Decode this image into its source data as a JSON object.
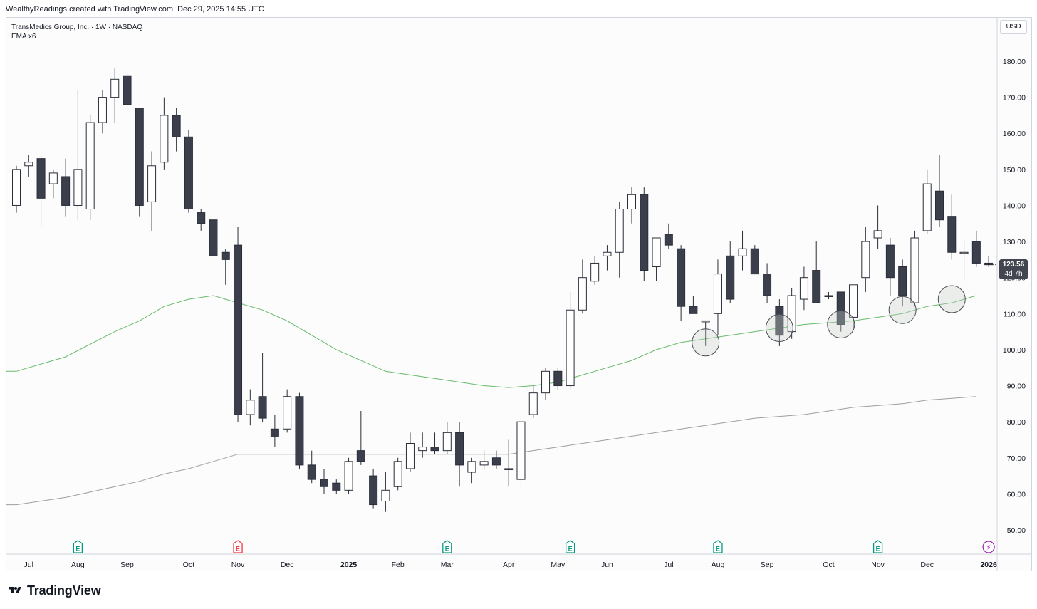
{
  "header": {
    "credit": "WealthyReadings created with TradingView.com, Dec 29, 2025 14:55 UTC"
  },
  "legend": {
    "symbol_line": "TransMedics Group, Inc. · 1W · NASDAQ",
    "indicator_line": "EMA x6"
  },
  "currency_button": "USD",
  "last_price": {
    "value": "123.56",
    "countdown": "4d 7h"
  },
  "brand": {
    "name": "TradingView"
  },
  "colors": {
    "up_body": "#ffffff",
    "down_body": "#3b3f4c",
    "candle_outline": "#2a2e39",
    "ema_green": "#66bb6a",
    "ema_gray": "#9e9e9e",
    "earnings_green": "#089981",
    "earnings_red": "#f23645",
    "dividend_purple": "#9c27b0",
    "grid": "#eeeeee"
  },
  "chart_data": {
    "type": "candlestick",
    "ylim": [
      44,
      190
    ],
    "y_ticks": [
      "180.00",
      "170.00",
      "160.00",
      "150.00",
      "140.00",
      "130.00",
      "120.00",
      "110.00",
      "100.00",
      "90.00",
      "80.00",
      "70.00",
      "60.00",
      "50.00"
    ],
    "y_tick_values": [
      180,
      170,
      160,
      150,
      140,
      130,
      120,
      110,
      100,
      90,
      80,
      70,
      60,
      50
    ],
    "x_month_labels": [
      "Jul",
      "Aug",
      "Sep",
      "Oct",
      "Nov",
      "Dec",
      "2025",
      "Feb",
      "Mar",
      "Apr",
      "May",
      "Jun",
      "Jul",
      "Aug",
      "Sep",
      "Oct",
      "Nov",
      "Dec",
      "2026"
    ],
    "x_month_index": [
      1,
      5,
      9,
      14,
      18,
      22,
      27,
      31,
      35,
      40,
      44,
      48,
      53,
      57,
      61,
      66,
      70,
      74,
      79
    ],
    "candles": [
      {
        "o": 140,
        "h": 151,
        "l": 138,
        "c": 150
      },
      {
        "o": 151,
        "h": 154,
        "l": 148,
        "c": 152
      },
      {
        "o": 153,
        "h": 154,
        "l": 134,
        "c": 142
      },
      {
        "o": 146,
        "h": 150,
        "l": 142,
        "c": 149
      },
      {
        "o": 148,
        "h": 153,
        "l": 137,
        "c": 140
      },
      {
        "o": 140,
        "h": 172,
        "l": 136,
        "c": 150
      },
      {
        "o": 139,
        "h": 165,
        "l": 136,
        "c": 163
      },
      {
        "o": 163,
        "h": 172,
        "l": 160,
        "c": 170
      },
      {
        "o": 170,
        "h": 178,
        "l": 163,
        "c": 175
      },
      {
        "o": 176,
        "h": 177,
        "l": 166,
        "c": 168
      },
      {
        "o": 167,
        "h": 167,
        "l": 137,
        "c": 140
      },
      {
        "o": 141,
        "h": 155,
        "l": 133,
        "c": 151
      },
      {
        "o": 152,
        "h": 170,
        "l": 150,
        "c": 165
      },
      {
        "o": 165,
        "h": 167,
        "l": 155,
        "c": 159
      },
      {
        "o": 159,
        "h": 161,
        "l": 138,
        "c": 139
      },
      {
        "o": 138,
        "h": 139,
        "l": 133,
        "c": 135
      },
      {
        "o": 136,
        "h": 136,
        "l": 126,
        "c": 126
      },
      {
        "o": 127,
        "h": 128,
        "l": 118,
        "c": 125
      },
      {
        "o": 129,
        "h": 134,
        "l": 80,
        "c": 82
      },
      {
        "o": 82,
        "h": 89,
        "l": 79,
        "c": 86
      },
      {
        "o": 87,
        "h": 99,
        "l": 80,
        "c": 81
      },
      {
        "o": 78,
        "h": 82,
        "l": 73,
        "c": 76
      },
      {
        "o": 78,
        "h": 89,
        "l": 77,
        "c": 87
      },
      {
        "o": 87,
        "h": 88,
        "l": 67,
        "c": 68
      },
      {
        "o": 68,
        "h": 72,
        "l": 63,
        "c": 64
      },
      {
        "o": 64,
        "h": 67,
        "l": 60,
        "c": 62
      },
      {
        "o": 63,
        "h": 64,
        "l": 60,
        "c": 61
      },
      {
        "o": 61,
        "h": 70,
        "l": 60,
        "c": 69
      },
      {
        "o": 72,
        "h": 83,
        "l": 68,
        "c": 69
      },
      {
        "o": 65,
        "h": 67,
        "l": 56,
        "c": 57
      },
      {
        "o": 58,
        "h": 66,
        "l": 55,
        "c": 61
      },
      {
        "o": 62,
        "h": 70,
        "l": 61,
        "c": 69
      },
      {
        "o": 67,
        "h": 77,
        "l": 66,
        "c": 74
      },
      {
        "o": 72,
        "h": 77,
        "l": 70,
        "c": 73
      },
      {
        "o": 73,
        "h": 77,
        "l": 71,
        "c": 72
      },
      {
        "o": 72,
        "h": 80,
        "l": 71,
        "c": 77
      },
      {
        "o": 77,
        "h": 80,
        "l": 62,
        "c": 68
      },
      {
        "o": 66,
        "h": 70,
        "l": 63,
        "c": 69
      },
      {
        "o": 68,
        "h": 72,
        "l": 67,
        "c": 69
      },
      {
        "o": 70,
        "h": 72,
        "l": 67,
        "c": 68
      },
      {
        "o": 67,
        "h": 75,
        "l": 62,
        "c": 67
      },
      {
        "o": 64,
        "h": 82,
        "l": 62,
        "c": 80
      },
      {
        "o": 82,
        "h": 90,
        "l": 81,
        "c": 88
      },
      {
        "o": 88,
        "h": 95,
        "l": 86,
        "c": 94
      },
      {
        "o": 94,
        "h": 95,
        "l": 89,
        "c": 90
      },
      {
        "o": 90,
        "h": 116,
        "l": 89,
        "c": 111
      },
      {
        "o": 111,
        "h": 125,
        "l": 110,
        "c": 120
      },
      {
        "o": 119,
        "h": 126,
        "l": 118,
        "c": 124
      },
      {
        "o": 126,
        "h": 129,
        "l": 122,
        "c": 127
      },
      {
        "o": 127,
        "h": 141,
        "l": 120,
        "c": 139
      },
      {
        "o": 139,
        "h": 145,
        "l": 135,
        "c": 143
      },
      {
        "o": 143,
        "h": 145,
        "l": 119,
        "c": 122
      },
      {
        "o": 123,
        "h": 131,
        "l": 119,
        "c": 131
      },
      {
        "o": 132,
        "h": 135,
        "l": 128,
        "c": 129
      },
      {
        "o": 128,
        "h": 129,
        "l": 108,
        "c": 112
      },
      {
        "o": 112,
        "h": 115,
        "l": 110,
        "c": 110
      },
      {
        "o": 108,
        "h": 108,
        "l": 101,
        "c": 108
      },
      {
        "o": 110,
        "h": 125,
        "l": 104,
        "c": 121
      },
      {
        "o": 126,
        "h": 130,
        "l": 113,
        "c": 114
      },
      {
        "o": 126,
        "h": 133,
        "l": 122,
        "c": 128
      },
      {
        "o": 128,
        "h": 129,
        "l": 122,
        "c": 121
      },
      {
        "o": 121,
        "h": 124,
        "l": 113,
        "c": 115
      },
      {
        "o": 112,
        "h": 114,
        "l": 101,
        "c": 104
      },
      {
        "o": 105,
        "h": 117,
        "l": 103,
        "c": 115
      },
      {
        "o": 114,
        "h": 123,
        "l": 111,
        "c": 120
      },
      {
        "o": 122,
        "h": 130,
        "l": 113,
        "c": 113
      },
      {
        "o": 115,
        "h": 116,
        "l": 114,
        "c": 115
      },
      {
        "o": 116,
        "h": 116,
        "l": 105,
        "c": 107
      },
      {
        "o": 109,
        "h": 118,
        "l": 106,
        "c": 118
      },
      {
        "o": 120,
        "h": 134,
        "l": 116,
        "c": 130
      },
      {
        "o": 131,
        "h": 140,
        "l": 128,
        "c": 133
      },
      {
        "o": 129,
        "h": 131,
        "l": 115,
        "c": 120
      },
      {
        "o": 123,
        "h": 125,
        "l": 112,
        "c": 115
      },
      {
        "o": 113,
        "h": 133,
        "l": 112,
        "c": 131
      },
      {
        "o": 133,
        "h": 150,
        "l": 132,
        "c": 146
      },
      {
        "o": 144,
        "h": 154,
        "l": 134,
        "c": 136
      },
      {
        "o": 137,
        "h": 143,
        "l": 125,
        "c": 127
      },
      {
        "o": 127,
        "h": 130,
        "l": 119,
        "c": 127
      },
      {
        "o": 130,
        "h": 133,
        "l": 123,
        "c": 124
      },
      {
        "o": 124,
        "h": 126,
        "l": 123,
        "c": 123.56
      }
    ],
    "ema_green": [
      [
        0,
        94
      ],
      [
        4,
        98
      ],
      [
        8,
        105
      ],
      [
        10,
        108
      ],
      [
        12,
        112
      ],
      [
        14,
        114
      ],
      [
        16,
        115
      ],
      [
        17,
        114
      ],
      [
        18,
        113
      ],
      [
        20,
        111
      ],
      [
        22,
        108
      ],
      [
        24,
        104
      ],
      [
        26,
        100
      ],
      [
        28,
        97
      ],
      [
        30,
        94
      ],
      [
        32,
        93
      ],
      [
        34,
        92
      ],
      [
        36,
        91
      ],
      [
        38,
        90
      ],
      [
        40,
        89.5
      ],
      [
        42,
        90
      ],
      [
        44,
        91
      ],
      [
        46,
        93
      ],
      [
        48,
        95
      ],
      [
        50,
        97
      ],
      [
        52,
        100
      ],
      [
        54,
        102
      ],
      [
        56,
        103
      ],
      [
        58,
        104
      ],
      [
        60,
        105
      ],
      [
        62,
        106
      ],
      [
        64,
        107
      ],
      [
        66,
        107.5
      ],
      [
        68,
        108
      ],
      [
        70,
        109
      ],
      [
        72,
        110
      ],
      [
        74,
        112
      ],
      [
        76,
        113
      ],
      [
        78,
        115
      ]
    ],
    "ema_gray": [
      [
        0,
        57
      ],
      [
        4,
        59
      ],
      [
        8,
        62
      ],
      [
        10,
        63.5
      ],
      [
        12,
        65.5
      ],
      [
        14,
        67
      ],
      [
        16,
        69
      ],
      [
        18,
        71
      ],
      [
        20,
        71
      ],
      [
        24,
        71
      ],
      [
        28,
        71
      ],
      [
        32,
        71
      ],
      [
        36,
        71
      ],
      [
        40,
        71
      ],
      [
        42,
        72
      ],
      [
        44,
        73
      ],
      [
        46,
        74
      ],
      [
        48,
        75
      ],
      [
        50,
        76
      ],
      [
        52,
        77
      ],
      [
        54,
        78
      ],
      [
        56,
        79
      ],
      [
        58,
        80
      ],
      [
        60,
        81
      ],
      [
        62,
        81.5
      ],
      [
        64,
        82
      ],
      [
        66,
        83
      ],
      [
        68,
        84
      ],
      [
        70,
        84.5
      ],
      [
        72,
        85
      ],
      [
        74,
        86
      ],
      [
        76,
        86.5
      ],
      [
        78,
        87
      ]
    ],
    "highlight_circles": [
      {
        "i": 56,
        "y": 102
      },
      {
        "i": 62,
        "y": 106
      },
      {
        "i": 67,
        "y": 107
      },
      {
        "i": 72,
        "y": 111
      },
      {
        "i": 76,
        "y": 114
      }
    ],
    "events": [
      {
        "i": 5,
        "type": "earnings",
        "label": "E",
        "color": "green"
      },
      {
        "i": 18,
        "type": "earnings",
        "label": "E",
        "color": "red"
      },
      {
        "i": 35,
        "type": "earnings",
        "label": "E",
        "color": "green"
      },
      {
        "i": 45,
        "type": "earnings",
        "label": "E",
        "color": "green"
      },
      {
        "i": 57,
        "type": "earnings",
        "label": "E",
        "color": "green"
      },
      {
        "i": 70,
        "type": "earnings",
        "label": "E",
        "color": "green"
      },
      {
        "i": 79,
        "type": "dividend",
        "label": "⚡",
        "color": "purple"
      }
    ]
  }
}
